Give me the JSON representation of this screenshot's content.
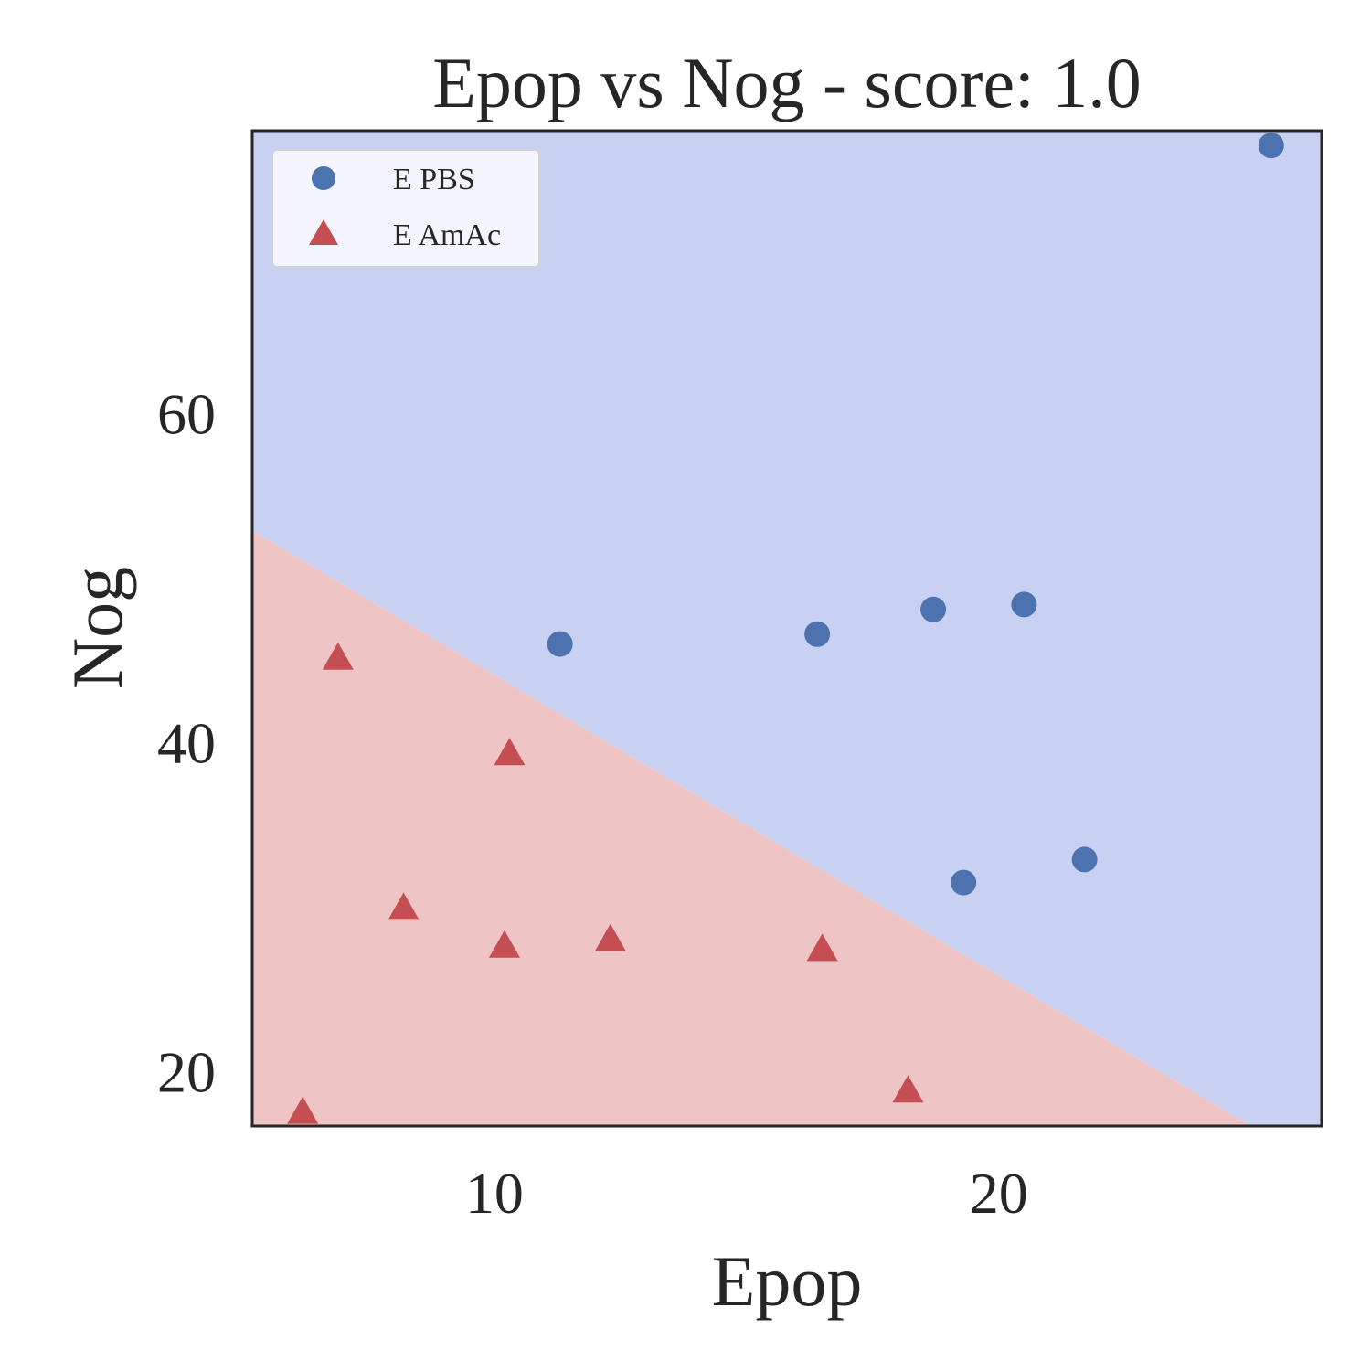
{
  "chart_data": {
    "type": "scatter",
    "title": "Epop vs Nog - score: 1.0",
    "xlabel": "Epop",
    "ylabel": "Nog",
    "xlim": [
      5.2,
      26.4
    ],
    "ylim": [
      16.7,
      77.2
    ],
    "xticks": [
      10,
      20
    ],
    "yticks": [
      20,
      40,
      60
    ],
    "grid": false,
    "legend_position": "top-left",
    "decision_boundary": {
      "points": [
        [
          5.2,
          52.9
        ],
        [
          25.0,
          16.7
        ]
      ],
      "region_above_color": "#c9d1f2",
      "region_below_color": "#efc4c4",
      "region_above_series": "E PBS",
      "region_below_series": "E AmAc"
    },
    "series": [
      {
        "name": "E PBS",
        "marker": "circle",
        "color": "#4c72b0",
        "x": [
          11.3,
          16.4,
          18.7,
          19.3,
          20.5,
          21.7,
          25.4
        ],
        "y": [
          46.0,
          46.6,
          48.1,
          31.5,
          48.4,
          32.9,
          76.3
        ]
      },
      {
        "name": "E AmAc",
        "marker": "triangle",
        "color": "#c44e52",
        "x": [
          6.2,
          6.9,
          8.2,
          10.2,
          10.3,
          12.3,
          16.5,
          18.2
        ],
        "y": [
          17.5,
          45.1,
          29.9,
          27.6,
          39.3,
          28.0,
          27.4,
          18.8
        ]
      }
    ]
  }
}
